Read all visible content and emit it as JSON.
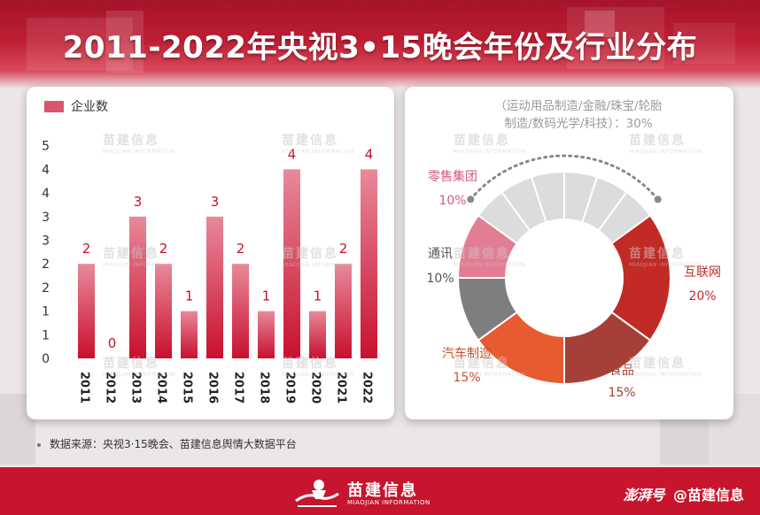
{
  "title": "2011-2022年央视3•15晚会年份及行业分布",
  "legend_label": "企业数",
  "source": "数据来源：央视3·15晚会、苗建信息舆情大数据平台",
  "watermark": {
    "cn": "苗建信息",
    "en": "MIAOJIAN INFORMATION"
  },
  "footer": {
    "logo_cn": "苗建信息",
    "logo_en": "MIAOJIAN INFORMATION",
    "platform": "澎湃号",
    "account": "@苗建信息"
  },
  "colors": {
    "primary_red": "#c6152c",
    "bar_top": "#e8899a",
    "bar_bottom": "#c8102e"
  },
  "chart_data": [
    {
      "type": "bar",
      "categories": [
        "2011",
        "2012",
        "2013",
        "2014",
        "2015",
        "2016",
        "2017",
        "2018",
        "2019",
        "2020",
        "2021",
        "2022"
      ],
      "series": [
        {
          "name": "企业数",
          "values": [
            2,
            0,
            3,
            2,
            1,
            3,
            2,
            1,
            4,
            1,
            2,
            4
          ]
        }
      ],
      "y_tick_labels": [
        "0",
        "1",
        "1",
        "2",
        "2",
        "3",
        "3",
        "4",
        "4",
        "5"
      ],
      "legend": "top-left",
      "grid": false
    },
    {
      "type": "pie",
      "donut": true,
      "segments": [
        {
          "label": "互联网",
          "value": 20,
          "value_label": "20%",
          "color": "#c22a25",
          "text_color": "#c22a25"
        },
        {
          "label": "食品",
          "value": 15,
          "value_label": "15%",
          "color": "#a53f37",
          "text_color": "#a53f37"
        },
        {
          "label": "汽车制造",
          "value": 15,
          "value_label": "15%",
          "color": "#e85a30",
          "text_color": "#c84a2a"
        },
        {
          "label": "通讯",
          "value": 10,
          "value_label": "10%",
          "color": "#7e7e7e",
          "text_color": "#555555"
        },
        {
          "label": "零售集团",
          "value": 10,
          "value_label": "10%",
          "color": "#e37d94",
          "text_color": "#d05a78"
        },
        {
          "label": "（运动用品制造/金融/珠宝/轮胎制造/数码光学/科技）",
          "value": 30,
          "value_label": "30%",
          "color": "#dcdcdc",
          "text_color": "#9a9a9a",
          "sub_segments": 6
        }
      ],
      "other_caption_lines": [
        "（运动用品制造/金融/珠宝/轮胎",
        "制造/数码光学/科技）：30%"
      ]
    }
  ]
}
